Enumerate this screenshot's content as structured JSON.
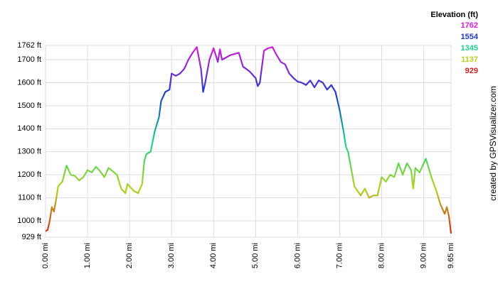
{
  "chart_data": {
    "type": "line",
    "x": [
      0,
      0.05,
      0.1,
      0.15,
      0.2,
      0.25,
      0.3,
      0.4,
      0.5,
      0.55,
      0.6,
      0.7,
      0.8,
      0.9,
      1.0,
      1.1,
      1.2,
      1.3,
      1.4,
      1.5,
      1.6,
      1.7,
      1.8,
      1.9,
      1.95,
      2.0,
      2.1,
      2.2,
      2.3,
      2.35,
      2.4,
      2.5,
      2.6,
      2.7,
      2.75,
      2.85,
      2.95,
      3.0,
      3.1,
      3.2,
      3.3,
      3.4,
      3.5,
      3.6,
      3.7,
      3.75,
      3.8,
      3.9,
      4.0,
      4.05,
      4.1,
      4.15,
      4.2,
      4.4,
      4.6,
      4.7,
      4.85,
      5.0,
      5.05,
      5.1,
      5.2,
      5.3,
      5.4,
      5.5,
      5.6,
      5.7,
      5.8,
      5.9,
      6.0,
      6.1,
      6.2,
      6.3,
      6.4,
      6.5,
      6.6,
      6.7,
      6.8,
      6.9,
      7.0,
      7.1,
      7.15,
      7.2,
      7.3,
      7.35,
      7.5,
      7.6,
      7.7,
      7.8,
      7.9,
      8.0,
      8.1,
      8.2,
      8.3,
      8.4,
      8.5,
      8.6,
      8.7,
      8.75,
      8.8,
      8.9,
      9.0,
      9.05,
      9.1,
      9.2,
      9.3,
      9.4,
      9.5,
      9.55,
      9.6,
      9.65
    ],
    "values": [
      955,
      960,
      1000,
      1060,
      1040,
      1090,
      1150,
      1170,
      1240,
      1220,
      1200,
      1195,
      1175,
      1190,
      1220,
      1210,
      1235,
      1215,
      1190,
      1230,
      1215,
      1200,
      1140,
      1120,
      1160,
      1150,
      1130,
      1120,
      1160,
      1260,
      1290,
      1300,
      1390,
      1450,
      1520,
      1560,
      1570,
      1640,
      1630,
      1640,
      1660,
      1700,
      1730,
      1755,
      1660,
      1560,
      1600,
      1700,
      1750,
      1720,
      1690,
      1745,
      1700,
      1720,
      1730,
      1670,
      1650,
      1620,
      1585,
      1600,
      1740,
      1750,
      1755,
      1720,
      1690,
      1680,
      1640,
      1620,
      1605,
      1600,
      1590,
      1610,
      1580,
      1610,
      1600,
      1570,
      1590,
      1560,
      1480,
      1380,
      1320,
      1300,
      1200,
      1150,
      1110,
      1140,
      1100,
      1110,
      1110,
      1190,
      1170,
      1200,
      1190,
      1250,
      1200,
      1250,
      1220,
      1140,
      1230,
      1210,
      1250,
      1270,
      1240,
      1180,
      1130,
      1070,
      1030,
      1060,
      1020,
      945
    ],
    "xlim": [
      0,
      9.65
    ],
    "xticks": [
      {
        "value": 0,
        "label": "0.00 mi"
      },
      {
        "value": 1,
        "label": "1.00 mi"
      },
      {
        "value": 2,
        "label": "2.00 mi"
      },
      {
        "value": 3,
        "label": "3.00 mi"
      },
      {
        "value": 4,
        "label": "4.00 mi"
      },
      {
        "value": 5,
        "label": "5.00 mi"
      },
      {
        "value": 6,
        "label": "6.00 mi"
      },
      {
        "value": 7,
        "label": "7.00 mi"
      },
      {
        "value": 8,
        "label": "8.00 mi"
      },
      {
        "value": 9,
        "label": "9.00 mi"
      },
      {
        "value": 9.65,
        "label": "9.65 mi"
      }
    ],
    "ylim": [
      929,
      1762
    ],
    "yticks": [
      {
        "value": 929,
        "label": "929 ft"
      },
      {
        "value": 1000,
        "label": "1000 ft"
      },
      {
        "value": 1100,
        "label": "1100 ft"
      },
      {
        "value": 1200,
        "label": "1200 ft"
      },
      {
        "value": 1300,
        "label": "1300 ft"
      },
      {
        "value": 1400,
        "label": "1400 ft"
      },
      {
        "value": 1500,
        "label": "1500 ft"
      },
      {
        "value": 1600,
        "label": "1600 ft"
      },
      {
        "value": 1700,
        "label": "1700 ft"
      },
      {
        "value": 1762,
        "label": "1762 ft"
      }
    ],
    "grid": true,
    "colorscale": {
      "title": "Elevation (ft)",
      "stops": [
        {
          "value": 1762,
          "color": "#d81ed8"
        },
        {
          "value": 1554,
          "color": "#1e3cc8"
        },
        {
          "value": 1345,
          "color": "#1ed28c"
        },
        {
          "value": 1137,
          "color": "#b4d21e"
        },
        {
          "value": 929,
          "color": "#d21e1e"
        }
      ]
    },
    "credit": "created by GPSVisualizer.com"
  }
}
